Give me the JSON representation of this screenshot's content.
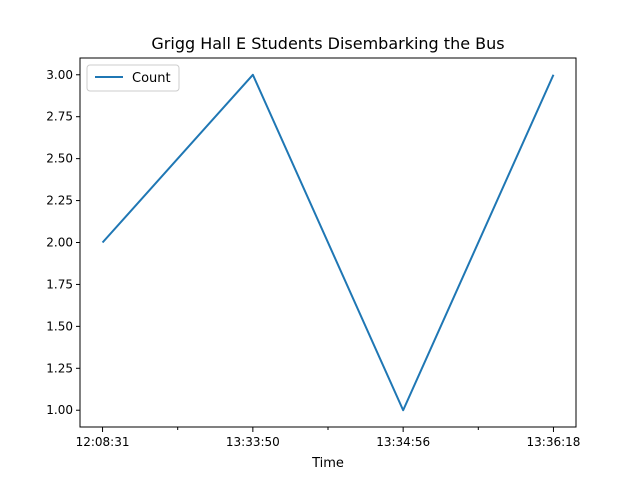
{
  "chart_data": {
    "type": "line",
    "title": "Grigg Hall E Students Disembarking the Bus",
    "xlabel": "Time",
    "ylabel": "",
    "x": [
      "12:08:31",
      "13:33:50",
      "13:34:56",
      "13:36:18"
    ],
    "series": [
      {
        "name": "Count",
        "values": [
          2,
          3,
          1,
          3
        ],
        "color": "#1f77b4"
      }
    ],
    "ylim": [
      0.9,
      3.1
    ],
    "yticks": [
      "1.00",
      "1.25",
      "1.50",
      "1.75",
      "2.00",
      "2.25",
      "2.50",
      "2.75",
      "3.00"
    ],
    "grid": false,
    "legend_position": "top-left"
  }
}
